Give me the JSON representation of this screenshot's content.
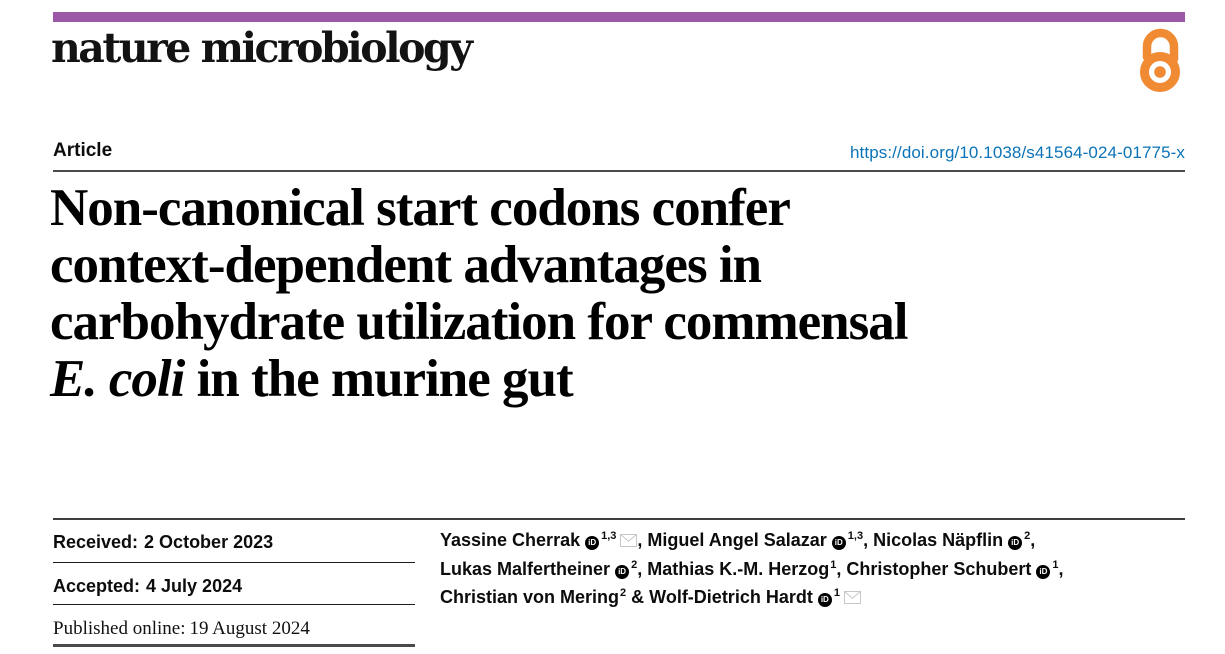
{
  "brand": {
    "bar_color": "#9b58a6",
    "open_access_orange": "#f08a33",
    "link_blue": "#0b73b7"
  },
  "masthead": {
    "journal": "nature microbiology"
  },
  "header": {
    "article_type": "Article",
    "doi_url": "https://doi.org/10.1038/s41564-024-01775-x"
  },
  "title": {
    "lines": [
      "Non-canonical start codons confer",
      "context-dependent advantages in",
      "carbohydrate utilization for commensal"
    ],
    "last_line_italic": "E. coli",
    "last_line_rest": " in the murine gut"
  },
  "dates": {
    "received": {
      "label": "Received:",
      "value": "2 October 2023"
    },
    "accepted": {
      "label": "Accepted:",
      "value": "4 July 2024"
    },
    "published": {
      "label": "Published online:",
      "value": "19 August 2024"
    }
  },
  "authors": {
    "orcid_icon_text": "iD",
    "list": [
      {
        "name": "Yassine Cherrak",
        "orcid": true,
        "sup": "1,3",
        "email": true,
        "sep": ", "
      },
      {
        "name": "Miguel Angel Salazar",
        "orcid": true,
        "sup": "1,3",
        "email": false,
        "sep": ", "
      },
      {
        "name": "Nicolas Näpflin",
        "orcid": true,
        "sup": "2",
        "email": false,
        "sep": ",",
        "break": true
      },
      {
        "name": "Lukas Malfertheiner",
        "orcid": true,
        "sup": "2",
        "email": false,
        "sep": ", "
      },
      {
        "name": "Mathias K.-M. Herzog",
        "orcid": false,
        "sup": "1",
        "email": false,
        "sep": ", "
      },
      {
        "name": "Christopher Schubert",
        "orcid": true,
        "sup": "1",
        "email": false,
        "sep": ",",
        "break": true
      },
      {
        "name": "Christian von Mering",
        "orcid": false,
        "sup": "2",
        "email": false,
        "sep": " & "
      },
      {
        "name": "Wolf-Dietrich Hardt",
        "orcid": true,
        "sup": "1",
        "email": true,
        "sep": ""
      }
    ]
  }
}
